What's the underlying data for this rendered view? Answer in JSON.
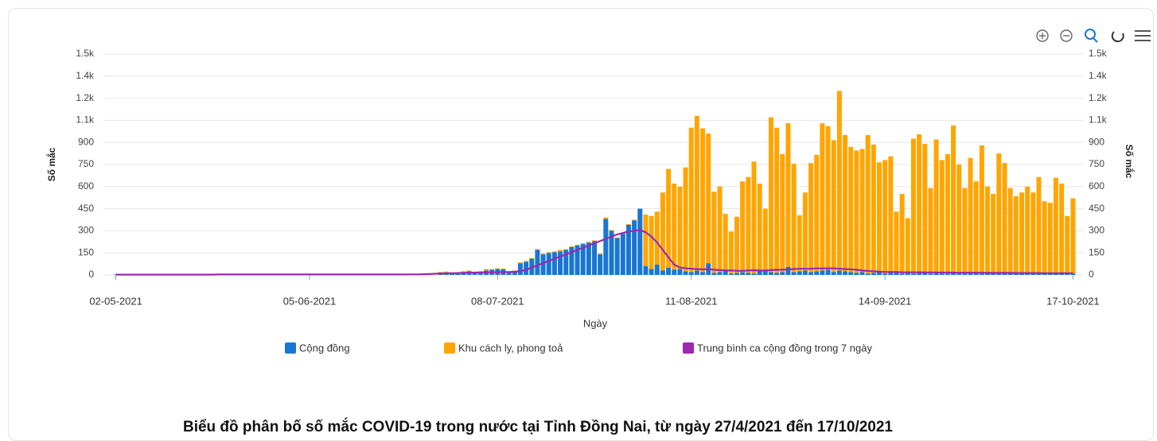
{
  "chart_data": {
    "type": "bar",
    "stacked": true,
    "title": "Biểu đồ phân bố số mắc COVID-19 trong nước tại Tỉnh Đồng Nai, từ ngày 27/4/2021 đến 17/10/2021",
    "x_label": "Ngày",
    "y_label": "Số mắc",
    "y2_label": "Số mắc",
    "ylim": [
      0,
      1500
    ],
    "yticks": [
      0,
      150,
      300,
      450,
      600,
      750,
      900,
      {
        "value": 1050,
        "label": "1.1k"
      },
      {
        "value": 1200,
        "label": "1.2k"
      },
      {
        "value": 1350,
        "label": "1.4k"
      },
      {
        "value": 1500,
        "label": "1.5k"
      }
    ],
    "y2lim": [
      0,
      1500
    ],
    "y2ticks": [
      0,
      150,
      300,
      450,
      600,
      750,
      900,
      {
        "value": 1050,
        "label": "1.1k"
      },
      {
        "value": 1200,
        "label": "1.2k"
      },
      {
        "value": 1350,
        "label": "1.4k"
      },
      {
        "value": 1500,
        "label": "1.5k"
      }
    ],
    "grid": true,
    "legend": "bottom",
    "categories": [
      "02-05-2021",
      null,
      null,
      null,
      null,
      null,
      null,
      null,
      null,
      null,
      null,
      null,
      null,
      null,
      null,
      null,
      null,
      null,
      null,
      null,
      null,
      null,
      null,
      null,
      null,
      null,
      null,
      null,
      null,
      null,
      null,
      null,
      null,
      null,
      "05-06-2021",
      null,
      null,
      null,
      null,
      null,
      null,
      null,
      null,
      null,
      null,
      null,
      null,
      null,
      null,
      null,
      null,
      null,
      null,
      null,
      null,
      null,
      null,
      null,
      null,
      null,
      null,
      null,
      null,
      null,
      null,
      null,
      null,
      "08-07-2021",
      null,
      null,
      null,
      null,
      null,
      null,
      null,
      null,
      null,
      null,
      null,
      null,
      null,
      null,
      null,
      null,
      null,
      null,
      null,
      null,
      null,
      null,
      null,
      null,
      null,
      null,
      null,
      null,
      null,
      null,
      null,
      null,
      null,
      "11-08-2021",
      null,
      null,
      null,
      null,
      null,
      null,
      null,
      null,
      null,
      null,
      null,
      null,
      null,
      null,
      null,
      null,
      null,
      null,
      null,
      null,
      null,
      null,
      null,
      null,
      null,
      null,
      null,
      null,
      null,
      null,
      null,
      null,
      null,
      "14-09-2021",
      null,
      null,
      null,
      null,
      null,
      null,
      null,
      null,
      null,
      null,
      null,
      null,
      null,
      null,
      null,
      null,
      null,
      null,
      null,
      null,
      null,
      null,
      null,
      null,
      null,
      null,
      null,
      null,
      null,
      null,
      null,
      null,
      "17-10-2021"
    ],
    "series": [
      {
        "name": "Cộng đồng",
        "type": "bar",
        "color": "#1976d2",
        "values": [
          3,
          0,
          0,
          0,
          0,
          0,
          0,
          0,
          1,
          0,
          0,
          0,
          0,
          0,
          0,
          0,
          0,
          0,
          2,
          0,
          0,
          0,
          0,
          0,
          0,
          2,
          0,
          0,
          0,
          0,
          0,
          0,
          0,
          0,
          0,
          0,
          0,
          0,
          0,
          0,
          0,
          0,
          0,
          0,
          0,
          0,
          0,
          0,
          2,
          0,
          0,
          1,
          0,
          0,
          2,
          0,
          0,
          15,
          18,
          12,
          10,
          20,
          25,
          15,
          20,
          30,
          35,
          40,
          38,
          20,
          25,
          80,
          90,
          110,
          170,
          140,
          150,
          155,
          160,
          170,
          190,
          200,
          210,
          220,
          230,
          140,
          380,
          300,
          250,
          280,
          340,
          370,
          450,
          60,
          40,
          70,
          30,
          50,
          35,
          40,
          25,
          20,
          30,
          20,
          80,
          15,
          20,
          25,
          10,
          15,
          20,
          15,
          10,
          25,
          30,
          20,
          15,
          20,
          55,
          20,
          25,
          30,
          20,
          25,
          30,
          35,
          20,
          30,
          25,
          20,
          15,
          20,
          10,
          15,
          20,
          10,
          15,
          20,
          10,
          15,
          10,
          15,
          20,
          10,
          15,
          10,
          10,
          15,
          10,
          10,
          10,
          15,
          10,
          10,
          10,
          15,
          10,
          10,
          10,
          10,
          10,
          10,
          15,
          10,
          10,
          10,
          10,
          10,
          10
        ]
      },
      {
        "name": "Khu cách ly, phong toả",
        "type": "bar",
        "color": "#ffa500",
        "values": [
          0,
          0,
          0,
          0,
          0,
          0,
          0,
          0,
          0,
          0,
          0,
          0,
          0,
          0,
          0,
          0,
          0,
          0,
          0,
          0,
          0,
          0,
          0,
          0,
          0,
          0,
          0,
          0,
          0,
          0,
          0,
          0,
          0,
          0,
          0,
          0,
          0,
          0,
          0,
          0,
          0,
          0,
          0,
          0,
          0,
          0,
          0,
          0,
          0,
          0,
          0,
          0,
          0,
          0,
          0,
          0,
          0,
          5,
          5,
          5,
          5,
          5,
          5,
          5,
          5,
          10,
          5,
          5,
          5,
          5,
          5,
          5,
          5,
          5,
          5,
          5,
          5,
          5,
          10,
          5,
          5,
          5,
          5,
          5,
          5,
          5,
          10,
          5,
          5,
          5,
          5,
          5,
          0,
          350,
          360,
          360,
          530,
          670,
          585,
          560,
          705,
          980,
          1050,
          975,
          880,
          550,
          580,
          390,
          285,
          380,
          615,
          650,
          760,
          595,
          420,
          1050,
          985,
          800,
          975,
          735,
          380,
          530,
          740,
          790,
          1000,
          975,
          895,
          1220,
          925,
          850,
          830,
          835,
          940,
          870,
          745,
          770,
          790,
          410,
          540,
          370,
          915,
          940,
          870,
          580,
          905,
          770,
          810,
          1000,
          740,
          580,
          785,
          620,
          870,
          590,
          540,
          810,
          750,
          580,
          525,
          550,
          590,
          550,
          650,
          490,
          480,
          650,
          610,
          390,
          510
        ]
      },
      {
        "name": "Trung bình ca cộng đồng trong 7 ngày",
        "type": "line",
        "axis": "y2",
        "color": "#9c27b0",
        "values": [
          2,
          2,
          2,
          2,
          2,
          2,
          2,
          2,
          2,
          2,
          2,
          2,
          2,
          2,
          2,
          2,
          2,
          2,
          3,
          3,
          3,
          3,
          3,
          3,
          3,
          3,
          3,
          3,
          3,
          3,
          3,
          3,
          3,
          3,
          3,
          3,
          3,
          3,
          3,
          3,
          3,
          3,
          3,
          3,
          3,
          3,
          3,
          3,
          3,
          3,
          3,
          3,
          4,
          4,
          5,
          6,
          8,
          10,
          11,
          12,
          13,
          14,
          15,
          16,
          17,
          18,
          18,
          19,
          20,
          20,
          22,
          25,
          35,
          50,
          65,
          80,
          95,
          110,
          125,
          140,
          155,
          170,
          185,
          200,
          215,
          230,
          245,
          260,
          275,
          285,
          295,
          300,
          305,
          290,
          260,
          220,
          170,
          120,
          70,
          50,
          45,
          42,
          40,
          38,
          40,
          35,
          33,
          30,
          30,
          28,
          28,
          30,
          32,
          30,
          30,
          33,
          35,
          35,
          38,
          40,
          42,
          42,
          42,
          44,
          44,
          45,
          45,
          42,
          40,
          38,
          35,
          30,
          27,
          25,
          22,
          20,
          20,
          20,
          18,
          18,
          18,
          18,
          17,
          17,
          17,
          16,
          16,
          16,
          15,
          15,
          15,
          15,
          15,
          14,
          14,
          14,
          14,
          14,
          13,
          13,
          13,
          13,
          13,
          12,
          12,
          12,
          12,
          12,
          12
        ]
      }
    ]
  }
}
